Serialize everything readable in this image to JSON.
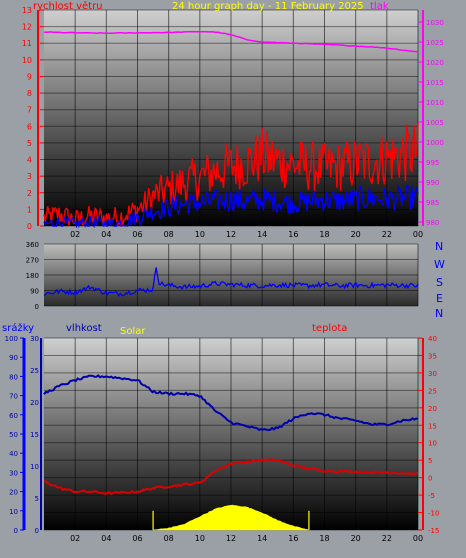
{
  "header": {
    "title": "24 hour graph day - 11 February 2025",
    "left_axis_label": "rychlost větru",
    "right_axis_label": "tlak"
  },
  "middle_panel": {
    "compass": [
      "N",
      "W",
      "S",
      "E",
      "N"
    ]
  },
  "bottom_panel": {
    "rain_label": "srážky",
    "humidity_label": "vlhkost",
    "solar_label": "Solar",
    "temp_label": "teplota"
  },
  "colors": {
    "wind_speed": "#ff0000",
    "wind_gust": "#0000ff",
    "pressure": "#ff00ff",
    "direction": "#0000ff",
    "humidity": "#0000aa",
    "temperature": "#dd0000",
    "solar": "#ffff00",
    "rain_axis": "#0000ff",
    "humidity_axis": "#0000aa",
    "temp_axis": "#ff0000",
    "title": "#ffff00",
    "compass": "#0000ff"
  },
  "chart_data": [
    {
      "type": "line",
      "title": "24 hour graph day - 11 February 2025",
      "x_ticks": [
        "02",
        "04",
        "06",
        "08",
        "10",
        "12",
        "14",
        "16",
        "18",
        "20",
        "22",
        "00"
      ],
      "left_axis": {
        "label": "rychlost větru",
        "ticks": [
          0,
          1,
          2,
          3,
          4,
          5,
          6,
          7,
          8,
          9,
          10,
          11,
          12,
          13
        ],
        "ylim": [
          0,
          13
        ]
      },
      "right_axis": {
        "label": "tlak",
        "ticks": [
          980,
          985,
          990,
          995,
          1000,
          1005,
          1010,
          1015,
          1020,
          1025,
          1030
        ],
        "ylim": [
          979,
          1033
        ]
      },
      "series": [
        {
          "name": "tlak",
          "axis": "right",
          "x": [
            0,
            2,
            4,
            6,
            8,
            10,
            11,
            12,
            13,
            14,
            16,
            18,
            20,
            22,
            23,
            24
          ],
          "values": [
            1027.5,
            1027.3,
            1027.2,
            1027.3,
            1027.4,
            1027.6,
            1027.5,
            1026.8,
            1025.6,
            1025.0,
            1024.7,
            1024.4,
            1024.0,
            1023.5,
            1023.0,
            1022.5
          ]
        },
        {
          "x": [
            0,
            1,
            2,
            3,
            4,
            5,
            5.5,
            6,
            6.5,
            7,
            8,
            9,
            10,
            11,
            12,
            13,
            14,
            15,
            16,
            17,
            18,
            19,
            20,
            21,
            22,
            23,
            24
          ],
          "values": [
            0.5,
            0.7,
            0.4,
            0.6,
            0.5,
            0.6,
            0.8,
            1.0,
            1.3,
            1.8,
            2.2,
            2.6,
            2.9,
            3.3,
            3.6,
            3.8,
            4.2,
            3.9,
            3.7,
            3.6,
            3.5,
            3.6,
            3.8,
            3.9,
            4.1,
            4.3,
            4.5
          ]
        },
        {
          "x": [
            0,
            1,
            2,
            3,
            4,
            5,
            5.5,
            6,
            6.5,
            7,
            8,
            9,
            10,
            11,
            12,
            13,
            14,
            15,
            16,
            17,
            18,
            19,
            20,
            21,
            22,
            23,
            24
          ],
          "values": [
            0.1,
            0.2,
            0.1,
            0.2,
            0.1,
            0.2,
            0.4,
            0.5,
            0.7,
            0.9,
            1.1,
            1.3,
            1.4,
            1.5,
            1.6,
            1.5,
            1.6,
            1.5,
            1.4,
            1.5,
            1.6,
            1.5,
            1.6,
            1.7,
            1.6,
            1.7,
            1.7
          ]
        }
      ]
    },
    {
      "type": "line",
      "x_ticks": [
        "02",
        "04",
        "06",
        "08",
        "10",
        "12",
        "14",
        "16",
        "18",
        "20",
        "22",
        "00"
      ],
      "left_axis": {
        "ticks": [
          0,
          90,
          180,
          270,
          360
        ],
        "ylim": [
          0,
          360
        ]
      },
      "compass": [
        "N",
        "W",
        "S",
        "E",
        "N"
      ],
      "series": [
        {
          "x": [
            0,
            1,
            2,
            3,
            4,
            5,
            6,
            7,
            7.2,
            7.4,
            8,
            9,
            10,
            11,
            12,
            13,
            14,
            15,
            16,
            17,
            18,
            19,
            20,
            21,
            22,
            23,
            24
          ],
          "values": [
            70,
            85,
            80,
            110,
            75,
            72,
            90,
            95,
            230,
            130,
            120,
            110,
            115,
            130,
            125,
            120,
            118,
            122,
            120,
            118,
            123,
            117,
            121,
            119,
            122,
            120,
            118
          ]
        }
      ]
    },
    {
      "type": "line",
      "x_ticks": [
        "02",
        "04",
        "06",
        "08",
        "10",
        "12",
        "14",
        "16",
        "18",
        "20",
        "22",
        "00"
      ],
      "rain_axis": {
        "label": "srážky",
        "ticks": [
          0,
          10,
          20,
          30,
          40,
          50,
          60,
          70,
          80,
          90,
          100
        ],
        "ylim": [
          0,
          100
        ]
      },
      "humidity_axis": {
        "label": "vlhkost",
        "ticks": [
          0,
          5,
          10,
          15,
          20,
          25,
          30
        ],
        "ylim": [
          0,
          30
        ]
      },
      "temp_axis": {
        "label": "teplota",
        "ticks": [
          -15,
          -10,
          -5,
          0,
          5,
          10,
          15,
          20,
          25,
          30,
          35,
          40
        ],
        "ylim": [
          -15,
          40
        ]
      },
      "series": [
        {
          "name": "vlhkost",
          "axis": "rain",
          "x": [
            0,
            1,
            2,
            3,
            4,
            5,
            6,
            7,
            8,
            9,
            10,
            11,
            12,
            13,
            14,
            15,
            16,
            17,
            18,
            19,
            20,
            21,
            22,
            23,
            24
          ],
          "values": [
            71,
            75,
            78,
            80,
            80,
            79,
            78,
            72,
            71,
            71,
            70,
            62,
            56,
            54,
            52,
            53,
            58,
            61,
            60,
            58,
            57,
            55,
            55,
            57,
            58
          ]
        },
        {
          "name": "teplota",
          "axis": "temp",
          "x": [
            0,
            1,
            2,
            3,
            4,
            5,
            6,
            7,
            8,
            9,
            10,
            11,
            12,
            13,
            14,
            15,
            16,
            17,
            18,
            19,
            20,
            21,
            22,
            23,
            24
          ],
          "values": [
            -1,
            -3,
            -4,
            -4,
            -4.5,
            -4.3,
            -4,
            -3,
            -2.5,
            -2,
            -1.5,
            2,
            4,
            4.5,
            5,
            5,
            3.5,
            2.5,
            2,
            1.8,
            1.7,
            1.5,
            1.5,
            1.3,
            1
          ]
        },
        {
          "name": "Solar",
          "type": "area",
          "axis": "rain",
          "x": [
            7,
            8,
            9,
            10,
            11,
            12,
            13,
            14,
            15,
            16,
            16.5,
            17
          ],
          "values": [
            0,
            1,
            3,
            7,
            11,
            13,
            12,
            9,
            5,
            2,
            1,
            0
          ]
        }
      ]
    }
  ]
}
